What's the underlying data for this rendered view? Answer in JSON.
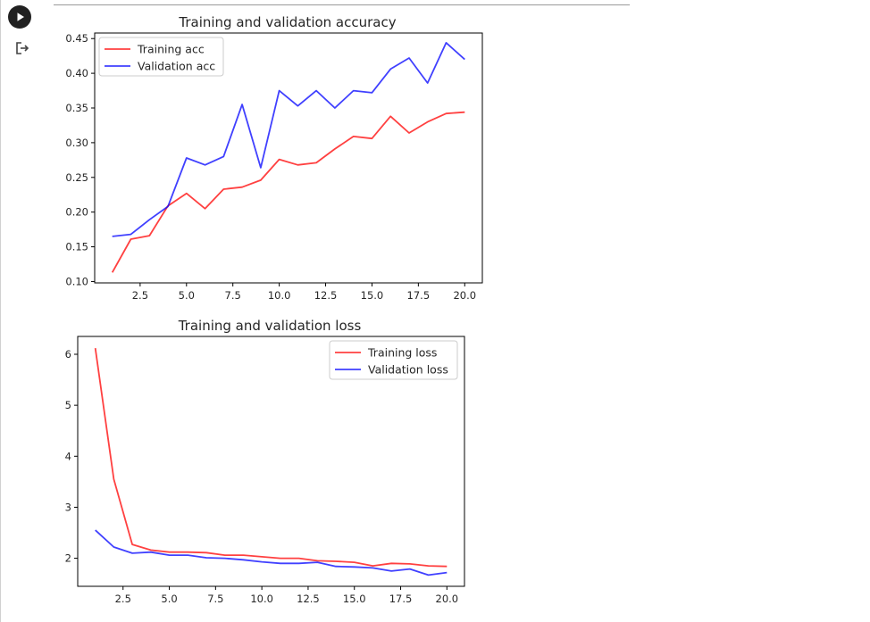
{
  "notebook": {
    "run_button_icon": "play-icon",
    "output_icon": "output-redirect-icon"
  },
  "chart_data": [
    {
      "type": "line",
      "title": "Training and validation accuracy",
      "xlabel": "",
      "ylabel": "",
      "xlim": [
        0.05,
        20.95
      ],
      "ylim": [
        0.098,
        0.458
      ],
      "xticks": [
        "2.5",
        "5.0",
        "7.5",
        "10.0",
        "12.5",
        "15.0",
        "17.5",
        "20.0"
      ],
      "yticks": [
        "0.10",
        "0.15",
        "0.20",
        "0.25",
        "0.30",
        "0.35",
        "0.40",
        "0.45"
      ],
      "legend_position": "upper left",
      "grid": false,
      "x": [
        1,
        2,
        3,
        4,
        5,
        6,
        7,
        8,
        9,
        10,
        11,
        12,
        13,
        14,
        15,
        16,
        17,
        18,
        19,
        20
      ],
      "series": [
        {
          "name": "Training acc",
          "color": "#ff0000",
          "values": [
            0.113,
            0.161,
            0.166,
            0.209,
            0.227,
            0.205,
            0.233,
            0.236,
            0.246,
            0.276,
            0.268,
            0.271,
            0.291,
            0.309,
            0.306,
            0.338,
            0.314,
            0.33,
            0.342,
            0.344
          ]
        },
        {
          "name": "Validation acc",
          "color": "#0000ff",
          "values": [
            0.165,
            0.168,
            0.189,
            0.208,
            0.278,
            0.268,
            0.28,
            0.355,
            0.264,
            0.375,
            0.353,
            0.375,
            0.35,
            0.375,
            0.372,
            0.406,
            0.422,
            0.386,
            0.444,
            0.42
          ]
        }
      ]
    },
    {
      "type": "line",
      "title": "Training and validation loss",
      "xlabel": "",
      "ylabel": "",
      "xlim": [
        0.05,
        20.95
      ],
      "ylim": [
        1.45,
        6.35
      ],
      "xticks": [
        "2.5",
        "5.0",
        "7.5",
        "10.0",
        "12.5",
        "15.0",
        "17.5",
        "20.0"
      ],
      "yticks": [
        "2",
        "3",
        "4",
        "5",
        "6"
      ],
      "legend_position": "upper right",
      "grid": false,
      "x": [
        1,
        2,
        3,
        4,
        5,
        6,
        7,
        8,
        9,
        10,
        11,
        12,
        13,
        14,
        15,
        16,
        17,
        18,
        19,
        20
      ],
      "series": [
        {
          "name": "Training loss",
          "color": "#ff0000",
          "values": [
            6.12,
            3.55,
            2.27,
            2.16,
            2.12,
            2.12,
            2.11,
            2.06,
            2.06,
            2.03,
            2.0,
            2.0,
            1.95,
            1.94,
            1.92,
            1.85,
            1.9,
            1.89,
            1.85,
            1.84
          ]
        },
        {
          "name": "Validation loss",
          "color": "#0000ff",
          "values": [
            2.55,
            2.22,
            2.1,
            2.12,
            2.06,
            2.06,
            2.01,
            2.0,
            1.97,
            1.93,
            1.9,
            1.9,
            1.92,
            1.84,
            1.83,
            1.81,
            1.75,
            1.79,
            1.67,
            1.72
          ]
        }
      ]
    }
  ]
}
